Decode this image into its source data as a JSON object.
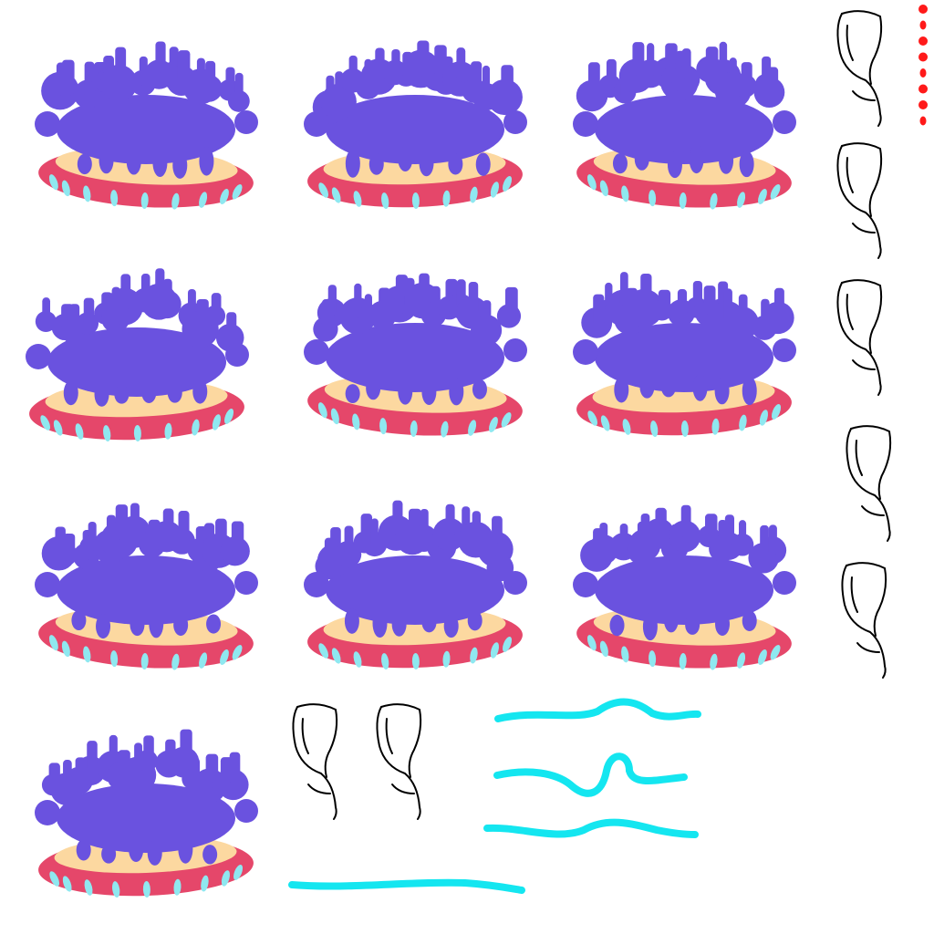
{
  "sheet": {
    "background": "#ffffff",
    "palette": {
      "foliage": "#6a52df",
      "rim": "#e5476a",
      "inner": "#fcd8a0",
      "spots": "#8fe8f0",
      "ink": "#000000",
      "marker": "#ff1a1a",
      "stroke": "#14e6f0"
    },
    "frames": [
      {
        "name": "coral-frame-1",
        "variant": 0
      },
      {
        "name": "coral-frame-2",
        "variant": 1
      },
      {
        "name": "coral-frame-3",
        "variant": 2
      },
      {
        "name": "coral-frame-4",
        "variant": 3
      },
      {
        "name": "coral-frame-5",
        "variant": 4
      },
      {
        "name": "coral-frame-6",
        "variant": 5
      },
      {
        "name": "coral-frame-7",
        "variant": 0
      },
      {
        "name": "coral-frame-8",
        "variant": 1
      },
      {
        "name": "coral-frame-9",
        "variant": 2
      },
      {
        "name": "coral-frame-10",
        "variant": 3
      }
    ],
    "vine_sprites": [
      {
        "name": "vine-sprite-1"
      },
      {
        "name": "vine-sprite-2"
      },
      {
        "name": "vine-sprite-3"
      },
      {
        "name": "vine-sprite-4"
      },
      {
        "name": "vine-sprite-5"
      },
      {
        "name": "vine-sprite-6"
      },
      {
        "name": "vine-sprite-7"
      }
    ],
    "particle_dots": 8,
    "wave_strokes": 4
  }
}
